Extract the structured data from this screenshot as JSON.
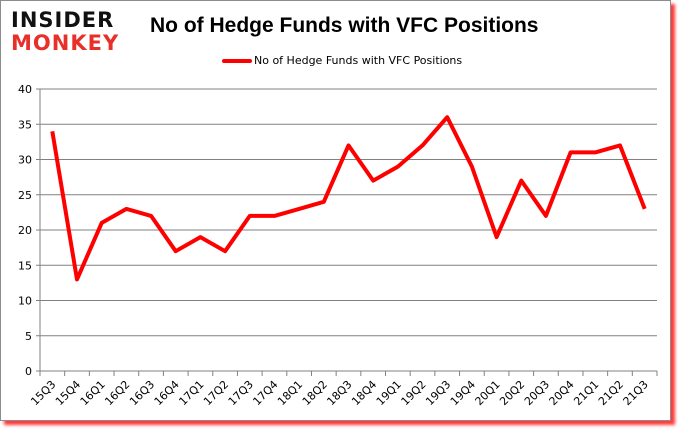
{
  "logo": {
    "line1": "INSIDER",
    "line2": "MONKEY"
  },
  "colors": {
    "series": "#ff0000",
    "grid": "#808080",
    "logo_red": "#e8302a",
    "shadow": "#ff3a3a"
  },
  "chart_data": {
    "type": "line",
    "title": "No of Hedge Funds with VFC Positions",
    "xlabel": "",
    "ylabel": "",
    "ylim": [
      0,
      40
    ],
    "yticks": [
      0,
      5,
      10,
      15,
      20,
      25,
      30,
      35,
      40
    ],
    "grid": true,
    "legend_position": "top",
    "categories": [
      "15Q3",
      "15Q4",
      "16Q1",
      "16Q2",
      "16Q3",
      "16Q4",
      "17Q1",
      "17Q2",
      "17Q3",
      "17Q4",
      "18Q1",
      "18Q2",
      "18Q3",
      "18Q4",
      "19Q1",
      "19Q2",
      "19Q3",
      "19Q4",
      "20Q1",
      "20Q2",
      "20Q3",
      "20Q4",
      "21Q1",
      "21Q2",
      "21Q3"
    ],
    "series": [
      {
        "name": "No of Hedge Funds with VFC Positions",
        "values": [
          34,
          13,
          21,
          23,
          22,
          17,
          19,
          17,
          22,
          22,
          23,
          24,
          32,
          27,
          29,
          32,
          36,
          29,
          19,
          27,
          22,
          31,
          31,
          32,
          23
        ]
      }
    ]
  }
}
